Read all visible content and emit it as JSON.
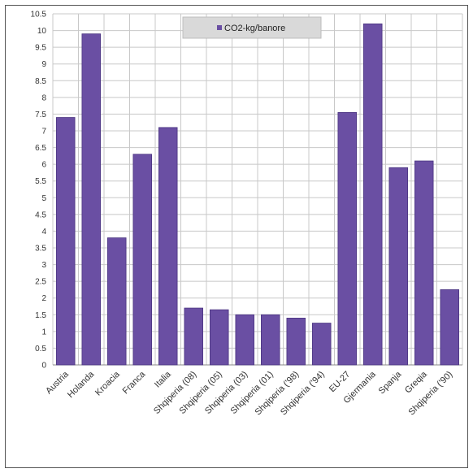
{
  "chart_data": {
    "type": "bar",
    "categories": [
      "Austria",
      "Holanda",
      "Kroacia",
      "Franca",
      "Italia",
      "Shqiperia (08)",
      "Shqiperia (05)",
      "Shqiperia (03)",
      "Shqiperia (01)",
      "Shqiperia ('98)",
      "Shqiperia ('94)",
      "EU-27",
      "Gjermania",
      "Spanja",
      "Greqia",
      "Shqiperia ('90)"
    ],
    "series": [
      {
        "name": "CO2-kg/banore",
        "values": [
          7.4,
          9.9,
          3.8,
          6.3,
          7.1,
          1.7,
          1.65,
          1.5,
          1.5,
          1.4,
          1.25,
          7.55,
          10.2,
          5.9,
          6.1,
          2.25
        ]
      }
    ],
    "yticks": [
      "0",
      "0.5",
      "1",
      "1.5",
      "2",
      "2.5",
      "3",
      "3.5",
      "4",
      "4.5",
      "5",
      "5.5",
      "6",
      "6.5",
      "7",
      "7.5",
      "8",
      "8.5",
      "9",
      "9.5",
      "10",
      "10.5"
    ],
    "ylim": [
      0,
      10.5
    ],
    "grid": true,
    "legend_position": "top-center",
    "colors": {
      "bar": "#6a4fa3",
      "bar_edge": "#4a3480",
      "grid": "#c8c8c8",
      "legend_bg": "#d9d9d9"
    }
  }
}
